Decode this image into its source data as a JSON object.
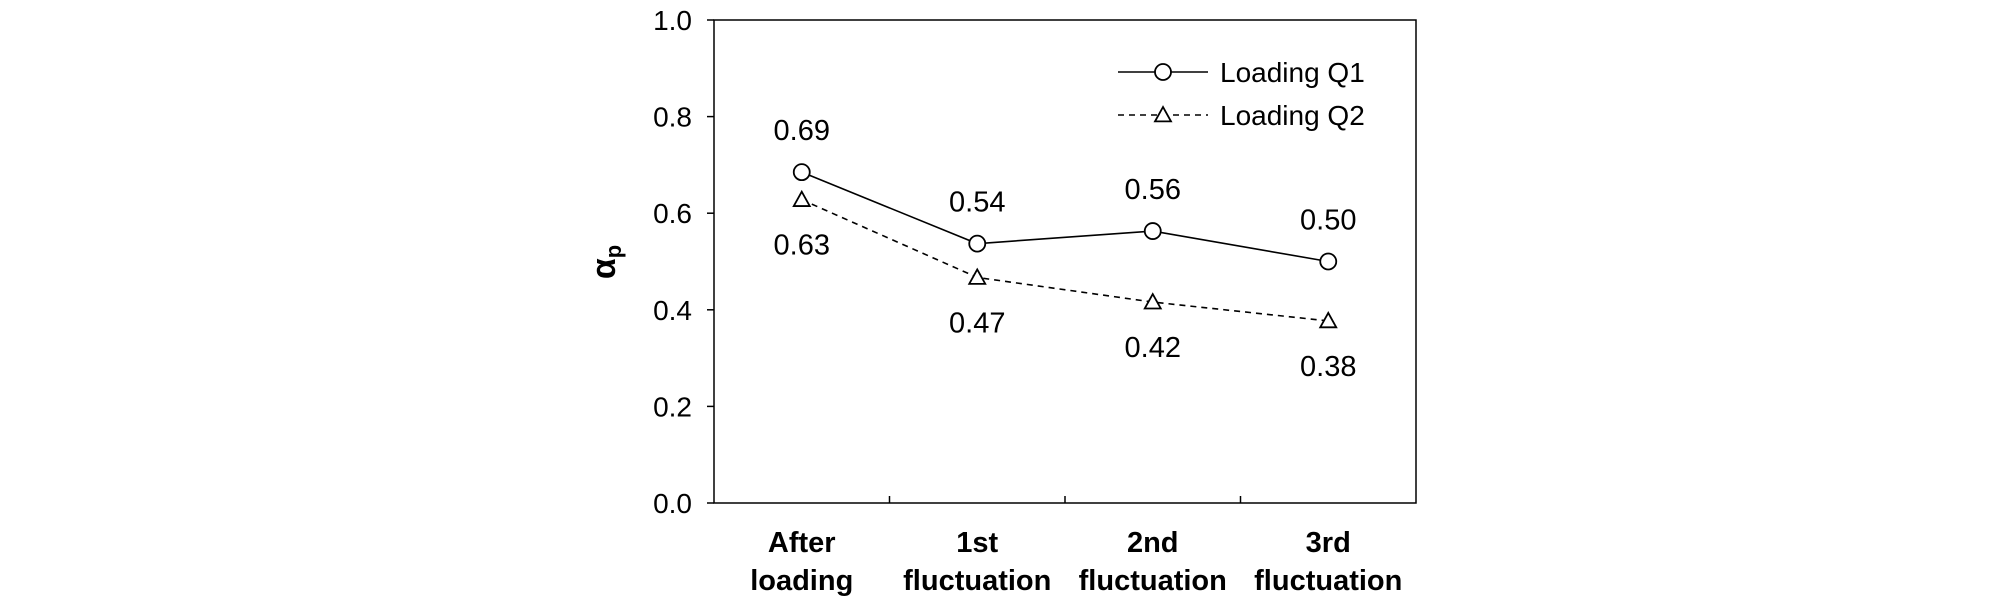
{
  "chart_data": {
    "type": "line",
    "title": "",
    "xlabel": "",
    "ylabel": "α",
    "ylabel_subscript": "p",
    "categories": [
      [
        "After",
        "loading"
      ],
      [
        "1st",
        "fluctuation"
      ],
      [
        "2nd",
        "fluctuation"
      ],
      [
        "3rd",
        "fluctuation"
      ]
    ],
    "ylim": [
      0.0,
      1.0
    ],
    "yticks": [
      0.0,
      0.2,
      0.4,
      0.6,
      0.8,
      1.0
    ],
    "ytick_labels": [
      "0.0",
      "0.2",
      "0.4",
      "0.6",
      "0.8",
      "1.0"
    ],
    "grid": false,
    "legend_position": "top-right",
    "series": [
      {
        "name": "Loading Q1",
        "values": [
          0.685,
          0.537,
          0.563,
          0.5
        ],
        "labels": [
          "0.69",
          "0.54",
          "0.56",
          "0.50"
        ],
        "marker": "circle",
        "line": "solid",
        "label_position": "above"
      },
      {
        "name": "Loading Q2",
        "values": [
          0.628,
          0.467,
          0.416,
          0.377
        ],
        "labels": [
          "0.63",
          "0.47",
          "0.42",
          "0.38"
        ],
        "marker": "triangle",
        "line": "dashed",
        "label_position": "below"
      }
    ]
  }
}
